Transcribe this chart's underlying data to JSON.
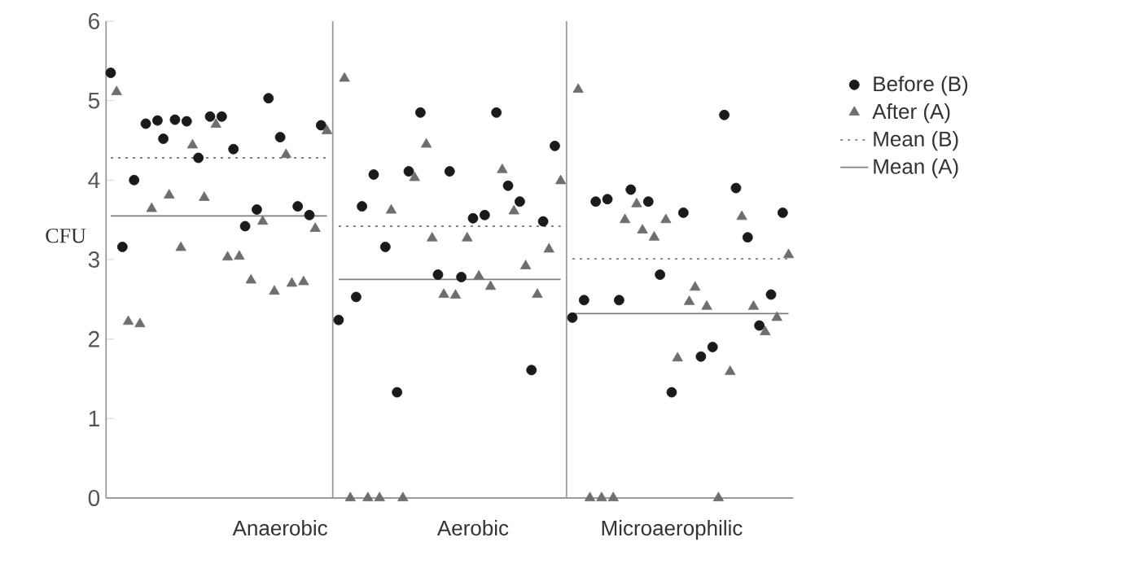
{
  "chart_data": {
    "type": "scatter",
    "ylabel": "CFU",
    "ylim": [
      0,
      6
    ],
    "yticks": [
      0,
      1,
      2,
      3,
      4,
      5,
      6
    ],
    "grid": false,
    "legend": "right",
    "categories": [
      null,
      null,
      null,
      null,
      null,
      null,
      null,
      null,
      null,
      null,
      null,
      null,
      null,
      null,
      null,
      null,
      null,
      null,
      null,
      null,
      null,
      null,
      null,
      null,
      null,
      null,
      null,
      null,
      null,
      "Anaerobic",
      null,
      null,
      null,
      null,
      null,
      null,
      null,
      null,
      null,
      null,
      null,
      null,
      null,
      null,
      null,
      null,
      null,
      null,
      null,
      null,
      null,
      null,
      null,
      null,
      null,
      null,
      null,
      null,
      null,
      null,
      null,
      null,
      "Aerobic",
      null,
      null,
      null,
      null,
      null,
      null,
      null,
      null,
      null,
      null,
      null,
      null,
      null,
      null,
      null,
      null,
      null,
      null,
      null,
      null,
      null,
      null,
      null,
      null,
      null,
      null,
      null,
      null,
      null,
      null,
      null,
      null,
      null,
      "Microaerophilic",
      null,
      null,
      null,
      null,
      null,
      null,
      null,
      null,
      null,
      null,
      null,
      null,
      null,
      null,
      null,
      null,
      null,
      null,
      null,
      null
    ],
    "series": [
      {
        "name": "Before  (B)",
        "color": "#1a1a1a",
        "marker": "circle",
        "values": [
          5.35,
          null,
          3.16,
          null,
          4.0,
          null,
          4.71,
          null,
          4.75,
          4.52,
          null,
          4.76,
          null,
          4.74,
          null,
          4.28,
          null,
          4.8,
          null,
          4.8,
          null,
          4.39,
          null,
          3.42,
          null,
          3.63,
          null,
          5.03,
          null,
          4.54,
          null,
          null,
          3.67,
          null,
          3.56,
          null,
          4.69,
          null,
          null,
          2.24,
          null,
          null,
          2.53,
          3.67,
          null,
          4.07,
          null,
          3.16,
          null,
          1.33,
          null,
          4.11,
          null,
          4.85,
          null,
          null,
          2.81,
          null,
          4.11,
          null,
          2.78,
          null,
          3.52,
          null,
          3.56,
          null,
          4.85,
          null,
          3.93,
          null,
          3.73,
          null,
          1.61,
          null,
          3.48,
          null,
          4.43,
          null,
          null,
          2.27,
          null,
          2.49,
          null,
          3.73,
          null,
          3.76,
          null,
          2.49,
          null,
          3.88,
          null,
          null,
          3.73,
          null,
          2.81,
          null,
          1.33,
          null,
          3.59,
          null,
          null,
          1.78,
          null,
          1.9,
          null,
          4.82,
          null,
          3.9,
          null,
          3.28,
          null,
          2.17,
          null,
          2.56,
          null,
          3.59,
          null
        ]
      },
      {
        "name": "After (A)",
        "color": "#6e6e6e",
        "marker": "triangle",
        "values": [
          null,
          5.11,
          null,
          2.22,
          null,
          2.19,
          null,
          3.64,
          null,
          null,
          3.81,
          null,
          3.15,
          null,
          4.44,
          null,
          3.78,
          null,
          4.7,
          null,
          3.03,
          null,
          3.04,
          null,
          2.74,
          null,
          3.48,
          null,
          2.6,
          null,
          4.32,
          2.7,
          null,
          2.72,
          null,
          3.39,
          null,
          4.62,
          null,
          null,
          5.28,
          0,
          null,
          null,
          0,
          null,
          0,
          null,
          3.62,
          null,
          0,
          null,
          4.03,
          null,
          4.45,
          3.27,
          null,
          2.56,
          null,
          2.55,
          null,
          3.27,
          null,
          2.79,
          null,
          2.66,
          null,
          4.13,
          null,
          3.61,
          null,
          2.92,
          null,
          2.56,
          null,
          3.13,
          null,
          3.99,
          null,
          null,
          5.14,
          null,
          0,
          null,
          0,
          null,
          0,
          null,
          3.5,
          null,
          3.7,
          3.37,
          null,
          3.28,
          null,
          3.5,
          null,
          1.76,
          null,
          2.47,
          2.65,
          null,
          2.41,
          null,
          0,
          null,
          1.59,
          null,
          3.54,
          null,
          2.41,
          null,
          2.09,
          null,
          2.27,
          null,
          3.06
        ]
      },
      {
        "name": "Mean (B)",
        "type": "line",
        "color": "#808080",
        "line_style": "dotted",
        "values": [
          4.28,
          4.28,
          4.28,
          4.28,
          4.28,
          4.28,
          4.28,
          4.28,
          4.28,
          4.28,
          4.28,
          4.28,
          4.28,
          4.28,
          4.28,
          4.28,
          4.28,
          4.28,
          4.28,
          4.28,
          4.28,
          4.28,
          4.28,
          4.28,
          4.28,
          4.28,
          4.28,
          4.28,
          4.28,
          4.28,
          4.28,
          4.28,
          4.28,
          4.28,
          4.28,
          4.28,
          4.28,
          4.28,
          null,
          3.42,
          3.42,
          3.42,
          3.42,
          3.42,
          3.42,
          3.42,
          3.42,
          3.42,
          3.42,
          3.42,
          3.42,
          3.42,
          3.42,
          3.42,
          3.42,
          3.42,
          3.42,
          3.42,
          3.42,
          3.42,
          3.42,
          3.42,
          3.42,
          3.42,
          3.42,
          3.42,
          3.42,
          3.42,
          3.42,
          3.42,
          3.42,
          3.42,
          3.42,
          3.42,
          3.42,
          3.42,
          3.42,
          3.42,
          null,
          3.01,
          3.01,
          3.01,
          3.01,
          3.01,
          3.01,
          3.01,
          3.01,
          3.01,
          3.01,
          3.01,
          3.01,
          3.01,
          3.01,
          3.01,
          3.01,
          3.01,
          3.01,
          3.01,
          3.01,
          3.01,
          3.01,
          3.01,
          3.01,
          3.01,
          3.01,
          3.01,
          3.01,
          3.01,
          3.01,
          3.01,
          3.01,
          3.01,
          3.01,
          3.01,
          3.01,
          3.01,
          3.01
        ]
      },
      {
        "name": "Mean (A)",
        "type": "line",
        "color": "#808080",
        "line_style": "solid",
        "values": [
          3.55,
          3.55,
          3.55,
          3.55,
          3.55,
          3.55,
          3.55,
          3.55,
          3.55,
          3.55,
          3.55,
          3.55,
          3.55,
          3.55,
          3.55,
          3.55,
          3.55,
          3.55,
          3.55,
          3.55,
          3.55,
          3.55,
          3.55,
          3.55,
          3.55,
          3.55,
          3.55,
          3.55,
          3.55,
          3.55,
          3.55,
          3.55,
          3.55,
          3.55,
          3.55,
          3.55,
          3.55,
          3.55,
          null,
          2.75,
          2.75,
          2.75,
          2.75,
          2.75,
          2.75,
          2.75,
          2.75,
          2.75,
          2.75,
          2.75,
          2.75,
          2.75,
          2.75,
          2.75,
          2.75,
          2.75,
          2.75,
          2.75,
          2.75,
          2.75,
          2.75,
          2.75,
          2.75,
          2.75,
          2.75,
          2.75,
          2.75,
          2.75,
          2.75,
          2.75,
          2.75,
          2.75,
          2.75,
          2.75,
          2.75,
          2.75,
          2.75,
          2.75,
          null,
          2.32,
          2.32,
          2.32,
          2.32,
          2.32,
          2.32,
          2.32,
          2.32,
          2.32,
          2.32,
          2.32,
          2.32,
          2.32,
          2.32,
          2.32,
          2.32,
          2.32,
          2.32,
          2.32,
          2.32,
          2.32,
          2.32,
          2.32,
          2.32,
          2.32,
          2.32,
          2.32,
          2.32,
          2.32,
          2.32,
          2.32,
          2.32,
          2.32,
          2.32,
          2.32,
          2.32,
          2.32,
          2.32
        ]
      }
    ]
  }
}
